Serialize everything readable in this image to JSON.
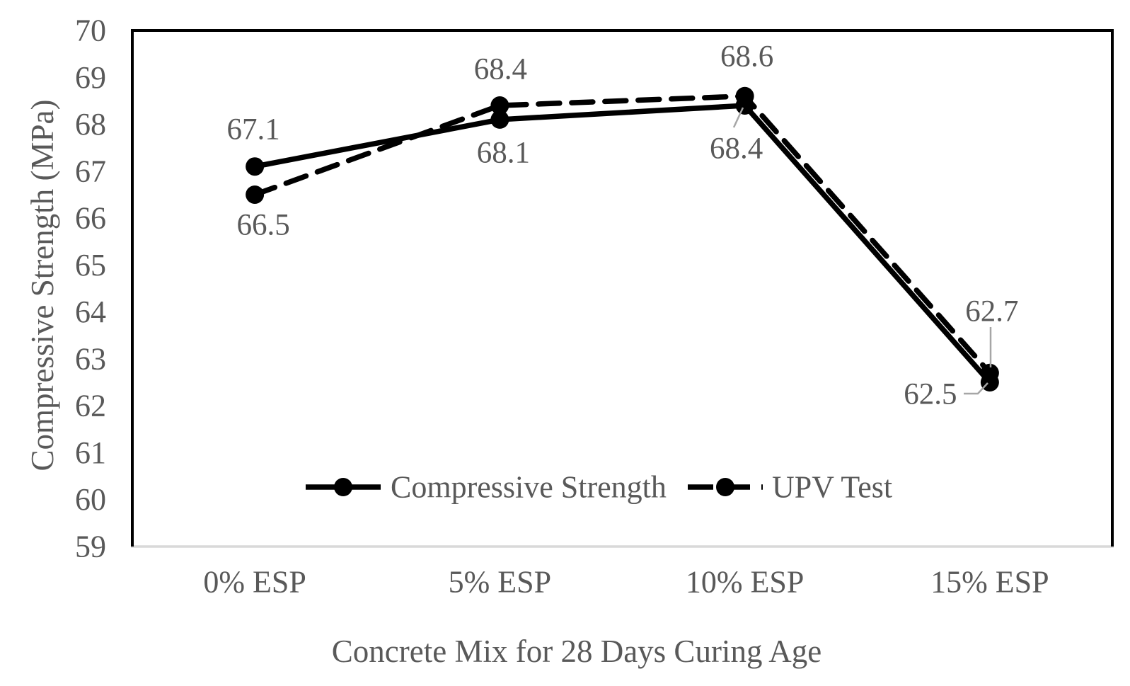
{
  "chart_data": {
    "type": "line",
    "title": "",
    "xlabel": "Concrete Mix for 28 Days Curing Age",
    "ylabel": "Compressive Strength (MPa)",
    "categories": [
      "0% ESP",
      "5% ESP",
      "10% ESP",
      "15% ESP"
    ],
    "series": [
      {
        "name": "Compressive Strength",
        "line_style": "solid",
        "marker": "circle",
        "color": "#000000",
        "values": [
          67.1,
          68.1,
          68.4,
          62.5
        ],
        "label_offsets": [
          [
            -2,
            -52
          ],
          [
            5,
            47
          ],
          [
            -12,
            61
          ],
          [
            -84,
            17
          ]
        ]
      },
      {
        "name": "UPV Test",
        "line_style": "dashed",
        "marker": "circle",
        "color": "#000000",
        "values": [
          66.5,
          68.4,
          68.6,
          62.7
        ],
        "label_offsets": [
          [
            12,
            43
          ],
          [
            1,
            -51
          ],
          [
            3,
            -56
          ],
          [
            3,
            -87
          ]
        ]
      }
    ],
    "ylim": [
      59,
      70
    ],
    "ytick_step": 1,
    "yticks": [
      59,
      60,
      61,
      62,
      63,
      64,
      65,
      66,
      67,
      68,
      69,
      70
    ],
    "grid": false,
    "legend_position": "bottom-inside",
    "data_labels_shown": true,
    "data_label_decimals": 1,
    "colors": {
      "text": "#595959",
      "line": "#000000",
      "plot_border": "#000000",
      "bottom_axis_line": "#d9d9d9",
      "leader_line": "#a6a6a6",
      "background": "#ffffff"
    }
  }
}
